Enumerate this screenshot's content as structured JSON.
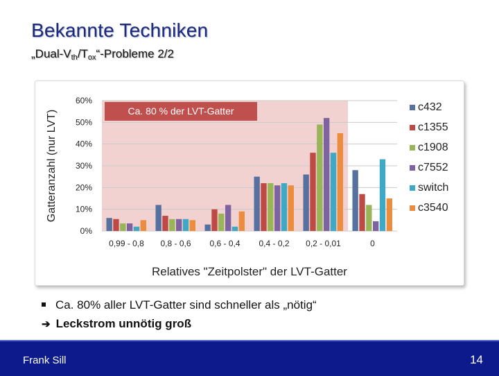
{
  "slide": {
    "title": "Bekannte Techniken",
    "subtitle_prefix": "„Dual-V",
    "subtitle_sub1": "th",
    "subtitle_mid": "/T",
    "subtitle_sub2": "ox",
    "subtitle_suffix": "“-Probleme 2/2",
    "bullet_1": "Ca. 80% aller LVT-Gatter sind schneller als „nötig“",
    "bullet_2": "Leckstrom unnötig groß",
    "footer_author": "Frank Sill",
    "footer_page": "14"
  },
  "chart_data": {
    "type": "bar",
    "xlabel": "Relatives \"Zeitpolster\" der LVT-Gatter",
    "ylabel": "Gatteranzahl (nur LVT)",
    "ylim": [
      0,
      0.6
    ],
    "yticks": [
      0,
      0.1,
      0.2,
      0.3,
      0.4,
      0.5,
      0.6
    ],
    "ytick_labels": [
      "0%",
      "10%",
      "20%",
      "30%",
      "40%",
      "50%",
      "60%"
    ],
    "categories": [
      "0,99 - 0,8",
      "0,8 - 0,6",
      "0,6 - 0,4",
      "0,4 - 0,2",
      "0,2 - 0,01",
      "0"
    ],
    "legend_position": "right",
    "series": [
      {
        "name": "c432",
        "color": "#56719f",
        "values": [
          0.06,
          0.12,
          0.03,
          0.25,
          0.26,
          0.28
        ]
      },
      {
        "name": "c1355",
        "color": "#be4a45",
        "values": [
          0.055,
          0.07,
          0.1,
          0.22,
          0.36,
          0.17
        ]
      },
      {
        "name": "c1908",
        "color": "#98b558",
        "values": [
          0.035,
          0.055,
          0.08,
          0.22,
          0.49,
          0.12
        ]
      },
      {
        "name": "c7552",
        "color": "#7d63a0",
        "values": [
          0.035,
          0.055,
          0.12,
          0.21,
          0.52,
          0.045
        ]
      },
      {
        "name": "switch",
        "color": "#3ea8c5",
        "values": [
          0.02,
          0.055,
          0.02,
          0.22,
          0.36,
          0.33
        ]
      },
      {
        "name": "c3540",
        "color": "#ec8c3e",
        "values": [
          0.05,
          0.05,
          0.09,
          0.21,
          0.45,
          0.15
        ]
      }
    ],
    "highlight": {
      "label": "Ca. 80 % der LVT-Gatter",
      "from_category": 0,
      "to_category": 4,
      "box_color": "#c0504d",
      "region_color": "#f2d2d0"
    }
  }
}
